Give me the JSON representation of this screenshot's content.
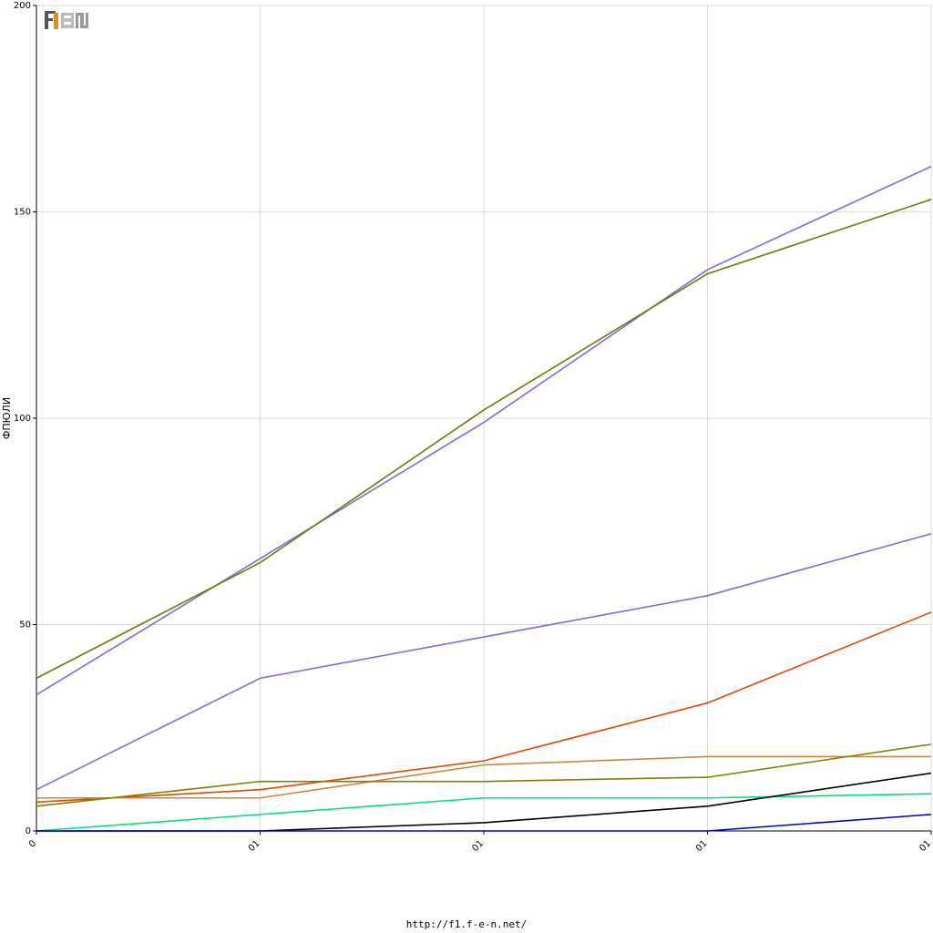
{
  "chart_data": {
    "type": "line",
    "xlabel": "",
    "ylabel": "ФПЮЛИ",
    "x_tick_labels": [
      "0",
      "01",
      "01",
      "01",
      "01"
    ],
    "ylim": [
      0,
      200
    ],
    "y_ticks": [
      0,
      50,
      100,
      150,
      200
    ],
    "grid": true,
    "series": [
      {
        "color": "#7b68ee",
        "values": [
          33,
          66,
          99,
          136,
          161
        ]
      },
      {
        "color": "#6b7d00",
        "values": [
          37,
          65,
          102,
          135,
          153
        ]
      },
      {
        "color": "#8566dd",
        "values": [
          10,
          37,
          47,
          57,
          72
        ]
      },
      {
        "color": "#e04a00",
        "values": [
          7,
          10,
          17,
          31,
          53
        ]
      },
      {
        "color": "#cd853f",
        "values": [
          8,
          8,
          16,
          18,
          18
        ]
      },
      {
        "color": "#808000",
        "values": [
          6,
          12,
          12,
          13,
          21
        ]
      },
      {
        "color": "#00e07a",
        "values": [
          0,
          4,
          8,
          8,
          9
        ]
      },
      {
        "color": "#000000",
        "values": [
          0,
          0,
          2,
          6,
          14
        ]
      },
      {
        "color": "#0000cd",
        "values": [
          0,
          0,
          0,
          0,
          4
        ]
      }
    ]
  },
  "logo": {
    "text": "F1EN"
  },
  "footer": {
    "url": "http://f1.f-e-n.net/"
  }
}
